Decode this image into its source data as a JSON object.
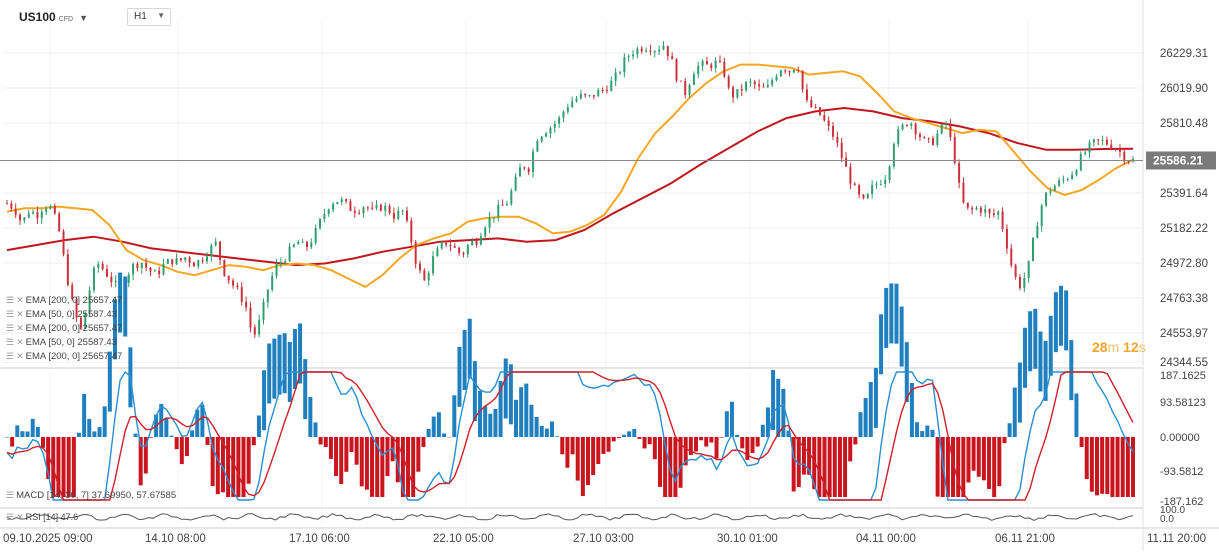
{
  "header": {
    "symbol": "US100",
    "symbol_type": "CFD",
    "timeframe": "H1"
  },
  "countdown": {
    "minutes": "28",
    "minutes_unit": "m",
    "seconds": "12",
    "seconds_unit": "s"
  },
  "legend": {
    "main": [
      {
        "text": "EMA [200, 0]  25657.47"
      },
      {
        "text": "EMA [50, 0]  25587.43"
      },
      {
        "text": "EMA [200, 0]  25657.47"
      },
      {
        "text": "EMA [50, 0]  25587.43"
      },
      {
        "text": "EMA [200, 0]  25657.47"
      }
    ],
    "macd": "MACD [14, 30, 7]  37.69950,   57.67585",
    "rsi": "RSI [14]  47.6"
  },
  "colors": {
    "up": "#2e9e6e",
    "down": "#c8323a",
    "ema50": "#f5a623",
    "ema200": "#c0171e",
    "macd_line": "#2a8fd0",
    "signal_line": "#d0202a",
    "hist_pos": "#1f7fbf",
    "hist_neg": "#c8151e",
    "rsi": "#555555"
  },
  "chart_data": [
    {
      "type": "line",
      "title": "US100 H1",
      "series_kind": "candlestick",
      "yticks": [
        "26229.31",
        "26019.90",
        "25810.48",
        "25391.64",
        "25182.22",
        "24972.80",
        "24763.38",
        "24553.97",
        "24344.55"
      ],
      "current_price": "25586.21",
      "xticks": [
        "09.10.2025  09:00",
        "14.10  08:00",
        "17.10  06:00",
        "22.10  05:00",
        "27.10  03:00",
        "30.10  01:00",
        "04.11  00:00",
        "06.11  21:00",
        "11.11  20:00"
      ],
      "ylim": [
        24344.55,
        26300
      ],
      "close_path": [
        25330,
        25300,
        25210,
        25290,
        25260,
        25320,
        25300,
        25160,
        24900,
        24680,
        24560,
        24800,
        24980,
        24930,
        24870,
        24820,
        24900,
        24960,
        24980,
        24930,
        24900,
        24960,
        24990,
        24980,
        25010,
        24970,
        24990,
        25050,
        25090,
        24930,
        24860,
        24800,
        24720,
        24520,
        24640,
        24820,
        24950,
        24990,
        25050,
        25100,
        25060,
        25120,
        25220,
        25310,
        25350,
        25340,
        25300,
        25290,
        25320,
        25280,
        25310,
        25300,
        25250,
        25290,
        25150,
        24950,
        24860,
        24990,
        25060,
        25100,
        25060,
        25020,
        25090,
        25110,
        25200,
        25250,
        25300,
        25330,
        25440,
        25560,
        25540,
        25720,
        25760,
        25790,
        25830,
        25910,
        25950,
        25970,
        25960,
        25990,
        26010,
        26050,
        26110,
        26200,
        26240,
        26260,
        26270,
        26250,
        26280,
        26200,
        26060,
        25990,
        26120,
        26160,
        26150,
        26170,
        26140,
        25970,
        25990,
        26040,
        26050,
        26010,
        26020,
        26100,
        26150,
        26120,
        26170,
        25940,
        25900,
        25860,
        25790,
        25720,
        25600,
        25480,
        25380,
        25330,
        25420,
        25460,
        25500,
        25720,
        25780,
        25830,
        25760,
        25700,
        25690,
        25760,
        25810,
        25620,
        25340,
        25280,
        25300,
        25290,
        25250,
        25280,
        25100,
        24900,
        24830,
        24960,
        25190,
        25360,
        25420,
        25450,
        25480,
        25520,
        25600,
        25660,
        25700,
        25700,
        25680,
        25650,
        25600,
        25586
      ],
      "ema50": [
        25280,
        25300,
        25300,
        25310,
        25300,
        25290,
        25200,
        25050,
        24990,
        24960,
        24920,
        24900,
        24930,
        24960,
        24950,
        24930,
        24960,
        24970,
        24960,
        24930,
        24880,
        24830,
        24900,
        25000,
        25080,
        25120,
        25150,
        25220,
        25240,
        25250,
        25250,
        25210,
        25150,
        25160,
        25200,
        25260,
        25400,
        25600,
        25750,
        25850,
        25960,
        26050,
        26120,
        26160,
        26160,
        26150,
        26140,
        26100,
        26110,
        26120,
        26090,
        25990,
        25880,
        25840,
        25810,
        25780,
        25750,
        25770,
        25760,
        25640,
        25520,
        25420,
        25380,
        25410,
        25470,
        25540,
        25590
      ],
      "ema200": [
        25050,
        25080,
        25110,
        25130,
        25100,
        25060,
        25040,
        25020,
        25000,
        24980,
        24960,
        24970,
        25000,
        25040,
        25070,
        25100,
        25110,
        25120,
        25100,
        25110,
        25170,
        25270,
        25360,
        25450,
        25560,
        25660,
        25760,
        25840,
        25880,
        25900,
        25880,
        25840,
        25820,
        25790,
        25750,
        25690,
        25650,
        25650,
        25655,
        25657
      ],
      "macd_yticks": [
        "187.1625",
        "93.58123",
        "0.00000",
        "-93.5812",
        "-187.162"
      ],
      "rsi_yticks": [
        "100.0",
        "0.0"
      ]
    }
  ]
}
